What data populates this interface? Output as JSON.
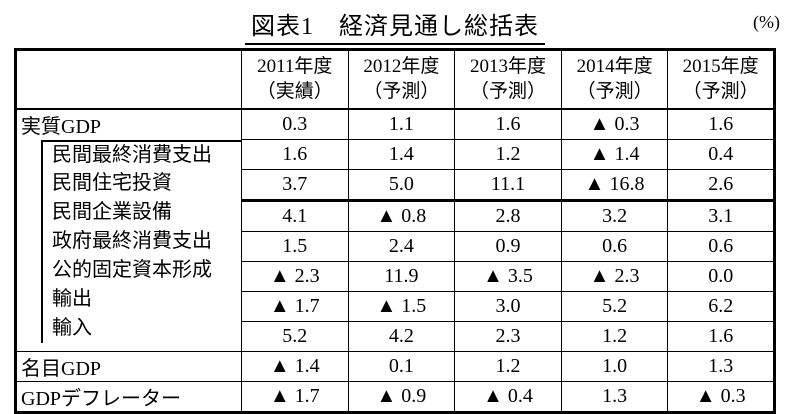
{
  "page": {
    "title": "図表1　経済見通し総括表",
    "unit_note": "(%)"
  },
  "table": {
    "header": {
      "blank": "",
      "cols": [
        {
          "year": "2011年度",
          "status": "（実績）"
        },
        {
          "year": "2012年度",
          "status": "（予測）"
        },
        {
          "year": "2013年度",
          "status": "（予測）"
        },
        {
          "year": "2014年度",
          "status": "（予測）"
        },
        {
          "year": "2015年度",
          "status": "（予測）"
        }
      ]
    },
    "rows": [
      {
        "label": "実質GDP",
        "indent": false,
        "values": [
          "0.3",
          "1.1",
          "1.6",
          "▲ 0.3",
          "1.6"
        ]
      },
      {
        "label": "民間最終消費支出",
        "indent": true,
        "values": [
          "1.6",
          "1.4",
          "1.2",
          "▲ 1.4",
          "0.4"
        ]
      },
      {
        "label": "民間住宅投資",
        "indent": true,
        "values": [
          "3.7",
          "5.0",
          "11.1",
          "▲ 16.8",
          "2.6"
        ]
      },
      {
        "label": "民間企業設備",
        "indent": true,
        "values": [
          "4.1",
          "▲ 0.8",
          "2.8",
          "3.2",
          "3.1"
        ]
      },
      {
        "label": "政府最終消費支出",
        "indent": true,
        "values": [
          "1.5",
          "2.4",
          "0.9",
          "0.6",
          "0.6"
        ]
      },
      {
        "label": "公的固定資本形成",
        "indent": true,
        "values": [
          "▲ 2.3",
          "11.9",
          "▲ 3.5",
          "▲ 2.3",
          "0.0"
        ]
      },
      {
        "label": "輸出",
        "indent": true,
        "values": [
          "▲ 1.7",
          "▲ 1.5",
          "3.0",
          "5.2",
          "6.2"
        ]
      },
      {
        "label": "輸入",
        "indent": true,
        "values": [
          "5.2",
          "4.2",
          "2.3",
          "1.2",
          "1.6"
        ]
      },
      {
        "label": "名目GDP",
        "indent": false,
        "values": [
          "▲ 1.4",
          "0.1",
          "1.2",
          "1.0",
          "1.3"
        ]
      },
      {
        "label": "GDPデフレーター",
        "indent": false,
        "values": [
          "▲ 1.7",
          "▲ 0.9",
          "▲ 0.4",
          "1.3",
          "▲ 0.3"
        ]
      }
    ],
    "negative_marker": "▲"
  }
}
